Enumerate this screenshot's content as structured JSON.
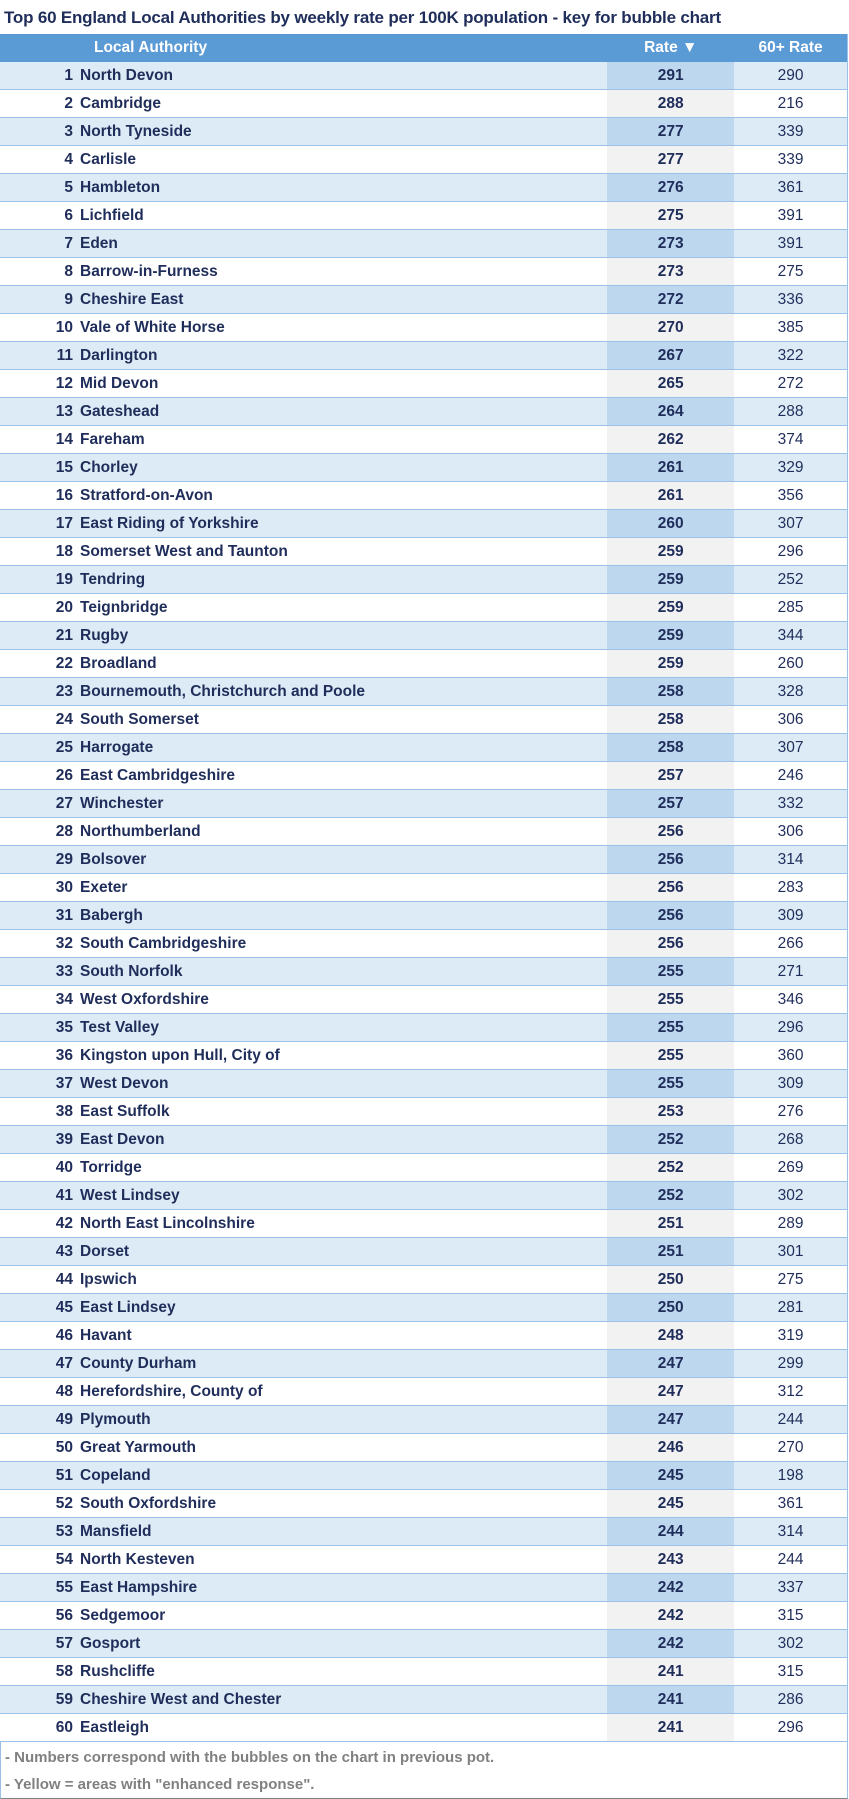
{
  "title": "Top 60 England Local Authorities by weekly rate per 100K population - key for bubble chart",
  "columns": {
    "name": "Local Authority",
    "rate": "Rate ▼",
    "rate60": "60+ Rate"
  },
  "colors": {
    "header": "#5b9bd5",
    "row_alt": "#ddebf7",
    "rate_alt": "#bdd7ee",
    "rate_plain": "#f2f2f2",
    "text": "#1f2d5a",
    "note": "#808080"
  },
  "rows": [
    {
      "num": "1",
      "name": "North Devon",
      "rate": "291",
      "rate60": "290"
    },
    {
      "num": "2",
      "name": "Cambridge",
      "rate": "288",
      "rate60": "216"
    },
    {
      "num": "3",
      "name": "North Tyneside",
      "rate": "277",
      "rate60": "339"
    },
    {
      "num": "4",
      "name": "Carlisle",
      "rate": "277",
      "rate60": "339"
    },
    {
      "num": "5",
      "name": "Hambleton",
      "rate": "276",
      "rate60": "361"
    },
    {
      "num": "6",
      "name": "Lichfield",
      "rate": "275",
      "rate60": "391"
    },
    {
      "num": "7",
      "name": "Eden",
      "rate": "273",
      "rate60": "391"
    },
    {
      "num": "8",
      "name": "Barrow-in-Furness",
      "rate": "273",
      "rate60": "275"
    },
    {
      "num": "9",
      "name": "Cheshire East",
      "rate": "272",
      "rate60": "336"
    },
    {
      "num": "10",
      "name": "Vale of White Horse",
      "rate": "270",
      "rate60": "385"
    },
    {
      "num": "11",
      "name": "Darlington",
      "rate": "267",
      "rate60": "322"
    },
    {
      "num": "12",
      "name": "Mid Devon",
      "rate": "265",
      "rate60": "272"
    },
    {
      "num": "13",
      "name": "Gateshead",
      "rate": "264",
      "rate60": "288"
    },
    {
      "num": "14",
      "name": "Fareham",
      "rate": "262",
      "rate60": "374"
    },
    {
      "num": "15",
      "name": "Chorley",
      "rate": "261",
      "rate60": "329"
    },
    {
      "num": "16",
      "name": "Stratford-on-Avon",
      "rate": "261",
      "rate60": "356"
    },
    {
      "num": "17",
      "name": "East Riding of Yorkshire",
      "rate": "260",
      "rate60": "307"
    },
    {
      "num": "18",
      "name": "Somerset West and Taunton",
      "rate": "259",
      "rate60": "296"
    },
    {
      "num": "19",
      "name": "Tendring",
      "rate": "259",
      "rate60": "252"
    },
    {
      "num": "20",
      "name": "Teignbridge",
      "rate": "259",
      "rate60": "285"
    },
    {
      "num": "21",
      "name": "Rugby",
      "rate": "259",
      "rate60": "344"
    },
    {
      "num": "22",
      "name": "Broadland",
      "rate": "259",
      "rate60": "260"
    },
    {
      "num": "23",
      "name": "Bournemouth, Christchurch and Poole",
      "rate": "258",
      "rate60": "328"
    },
    {
      "num": "24",
      "name": "South Somerset",
      "rate": "258",
      "rate60": "306"
    },
    {
      "num": "25",
      "name": "Harrogate",
      "rate": "258",
      "rate60": "307"
    },
    {
      "num": "26",
      "name": "East Cambridgeshire",
      "rate": "257",
      "rate60": "246"
    },
    {
      "num": "27",
      "name": "Winchester",
      "rate": "257",
      "rate60": "332"
    },
    {
      "num": "28",
      "name": "Northumberland",
      "rate": "256",
      "rate60": "306"
    },
    {
      "num": "29",
      "name": "Bolsover",
      "rate": "256",
      "rate60": "314"
    },
    {
      "num": "30",
      "name": "Exeter",
      "rate": "256",
      "rate60": "283"
    },
    {
      "num": "31",
      "name": "Babergh",
      "rate": "256",
      "rate60": "309"
    },
    {
      "num": "32",
      "name": "South Cambridgeshire",
      "rate": "256",
      "rate60": "266"
    },
    {
      "num": "33",
      "name": "South Norfolk",
      "rate": "255",
      "rate60": "271"
    },
    {
      "num": "34",
      "name": "West Oxfordshire",
      "rate": "255",
      "rate60": "346"
    },
    {
      "num": "35",
      "name": "Test Valley",
      "rate": "255",
      "rate60": "296"
    },
    {
      "num": "36",
      "name": "Kingston upon Hull, City of",
      "rate": "255",
      "rate60": "360"
    },
    {
      "num": "37",
      "name": "West Devon",
      "rate": "255",
      "rate60": "309"
    },
    {
      "num": "38",
      "name": "East Suffolk",
      "rate": "253",
      "rate60": "276"
    },
    {
      "num": "39",
      "name": "East Devon",
      "rate": "252",
      "rate60": "268"
    },
    {
      "num": "40",
      "name": "Torridge",
      "rate": "252",
      "rate60": "269"
    },
    {
      "num": "41",
      "name": "West Lindsey",
      "rate": "252",
      "rate60": "302"
    },
    {
      "num": "42",
      "name": "North East Lincolnshire",
      "rate": "251",
      "rate60": "289"
    },
    {
      "num": "43",
      "name": "Dorset",
      "rate": "251",
      "rate60": "301"
    },
    {
      "num": "44",
      "name": "Ipswich",
      "rate": "250",
      "rate60": "275"
    },
    {
      "num": "45",
      "name": "East Lindsey",
      "rate": "250",
      "rate60": "281"
    },
    {
      "num": "46",
      "name": "Havant",
      "rate": "248",
      "rate60": "319"
    },
    {
      "num": "47",
      "name": "County Durham",
      "rate": "247",
      "rate60": "299"
    },
    {
      "num": "48",
      "name": "Herefordshire, County of",
      "rate": "247",
      "rate60": "312"
    },
    {
      "num": "49",
      "name": "Plymouth",
      "rate": "247",
      "rate60": "244"
    },
    {
      "num": "50",
      "name": "Great Yarmouth",
      "rate": "246",
      "rate60": "270"
    },
    {
      "num": "51",
      "name": "Copeland",
      "rate": "245",
      "rate60": "198"
    },
    {
      "num": "52",
      "name": "South Oxfordshire",
      "rate": "245",
      "rate60": "361"
    },
    {
      "num": "53",
      "name": "Mansfield",
      "rate": "244",
      "rate60": "314"
    },
    {
      "num": "54",
      "name": "North Kesteven",
      "rate": "243",
      "rate60": "244"
    },
    {
      "num": "55",
      "name": "East Hampshire",
      "rate": "242",
      "rate60": "337"
    },
    {
      "num": "56",
      "name": "Sedgemoor",
      "rate": "242",
      "rate60": "315"
    },
    {
      "num": "57",
      "name": "Gosport",
      "rate": "242",
      "rate60": "302"
    },
    {
      "num": "58",
      "name": "Rushcliffe",
      "rate": "241",
      "rate60": "315"
    },
    {
      "num": "59",
      "name": "Cheshire West and Chester",
      "rate": "241",
      "rate60": "286"
    },
    {
      "num": "60",
      "name": "Eastleigh",
      "rate": "241",
      "rate60": "296"
    }
  ],
  "notes": [
    "- Numbers correspond with the bubbles on the chart in previous pot.",
    "- Yellow = areas with \"enhanced response\"."
  ]
}
